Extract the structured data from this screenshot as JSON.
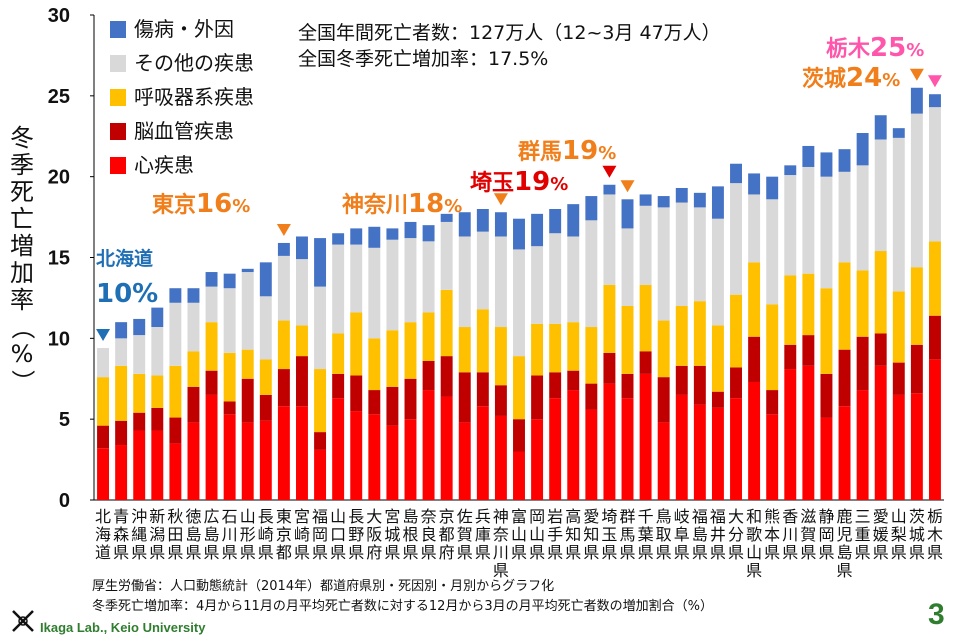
{
  "chart_data": {
    "type": "bar",
    "stacked": true,
    "ylabel": "冬季死亡増加率（%）",
    "ylim": [
      0,
      30
    ],
    "yticks": [
      0,
      5,
      10,
      15,
      20,
      25,
      30
    ],
    "grid": false,
    "legend_position": "top-left",
    "categories": [
      "北海道",
      "青森県",
      "沖縄県",
      "新潟県",
      "秋田県",
      "徳島県",
      "広島県",
      "石川県",
      "山形県",
      "長崎県",
      "東京都",
      "宮崎県",
      "福岡県",
      "山口県",
      "長野県",
      "大阪府",
      "宮城県",
      "島根県",
      "奈良県",
      "京都府",
      "佐賀県",
      "兵庫県",
      "神奈川県",
      "富山県",
      "岡山県",
      "岩手県",
      "高知県",
      "愛知県",
      "埼玉県",
      "群馬県",
      "千葉県",
      "鳥取県",
      "岐阜県",
      "福島県",
      "福井県",
      "大分県",
      "和歌山県",
      "熊本県",
      "香川県",
      "滋賀県",
      "静岡県",
      "鹿児島県",
      "三重県",
      "愛媛県",
      "山梨県",
      "茨城県",
      "栃木県"
    ],
    "category_labels": [
      "北海道",
      "青森県",
      "沖縄県",
      "新潟県",
      "秋田県",
      "徳島県",
      "広島県",
      "石川県",
      "山形県",
      "長崎県",
      "東京都",
      "宮崎県",
      "福岡県",
      "山口県",
      "長野県",
      "大阪府",
      "宮城県",
      "島根県",
      "奈良県",
      "京都府",
      "佐賀県",
      "兵庫県",
      "神奈川県",
      "富山県",
      "岡山県",
      "岩手県",
      "高知県",
      "愛知県",
      "埼玉県",
      "群馬県",
      "千葉県",
      "鳥取県",
      "岐阜県",
      "福島県",
      "福井県",
      "大分県",
      "和歌山県",
      "熊本県",
      "香川県",
      "滋賀県",
      "静岡県",
      "鹿児島県",
      "三重県",
      "愛媛県",
      "山梨県",
      "茨城県",
      "栃木県"
    ],
    "series": [
      {
        "name": "心疾患",
        "color": "#ff0000",
        "values": [
          3.2,
          3.4,
          4.3,
          4.3,
          3.5,
          4.8,
          6.5,
          5.3,
          4.8,
          4.9,
          5.8,
          5.8,
          3.1,
          6.3,
          5.5,
          5.3,
          4.6,
          5.0,
          6.8,
          6.4,
          4.8,
          5.8,
          5.2,
          3.0,
          5.0,
          6.3,
          6.8,
          5.6,
          7.2,
          6.3,
          7.8,
          4.8,
          6.5,
          5.9,
          5.7,
          6.3,
          7.3,
          5.3,
          8.1,
          8.3,
          5.1,
          5.8,
          6.8,
          8.3,
          6.5,
          6.6,
          8.7
        ]
      },
      {
        "name": "脳血管疾患",
        "color": "#c00000",
        "values": [
          1.4,
          1.5,
          1.1,
          1.4,
          1.6,
          2.2,
          1.5,
          0.8,
          2.7,
          1.6,
          2.3,
          3.1,
          1.1,
          1.5,
          2.2,
          1.5,
          2.4,
          2.5,
          1.8,
          2.5,
          3.1,
          2.1,
          1.9,
          2.0,
          2.7,
          1.6,
          1.2,
          1.6,
          1.9,
          1.5,
          1.4,
          2.8,
          1.8,
          2.4,
          1.0,
          1.9,
          2.8,
          1.5,
          1.5,
          1.9,
          2.7,
          3.5,
          3.3,
          2.0,
          2.0,
          3.0,
          2.7
        ]
      },
      {
        "name": "呼吸器系疾患",
        "color": "#ffc000",
        "values": [
          3.0,
          3.4,
          2.4,
          2.0,
          3.2,
          2.2,
          3.0,
          3.0,
          1.8,
          2.2,
          3.0,
          1.9,
          3.9,
          2.5,
          3.9,
          3.2,
          3.5,
          3.5,
          3.0,
          4.1,
          2.8,
          3.9,
          3.6,
          3.9,
          3.2,
          3.0,
          3.0,
          3.5,
          4.2,
          4.2,
          4.1,
          3.5,
          3.7,
          4.0,
          4.1,
          4.5,
          4.6,
          5.3,
          4.3,
          3.8,
          5.3,
          5.4,
          4.1,
          5.1,
          4.4,
          4.8,
          4.6
        ]
      },
      {
        "name": "その他の疾患",
        "color": "#d9d9d9",
        "values": [
          1.8,
          1.7,
          2.4,
          3.0,
          3.9,
          3.0,
          2.2,
          4.0,
          4.8,
          3.9,
          4.0,
          4.1,
          5.1,
          5.5,
          4.2,
          5.6,
          5.6,
          5.2,
          4.4,
          4.2,
          5.6,
          4.8,
          5.6,
          6.6,
          4.8,
          5.6,
          5.3,
          6.6,
          5.6,
          4.8,
          4.9,
          7.0,
          6.4,
          5.8,
          6.6,
          6.9,
          4.2,
          6.5,
          6.2,
          6.6,
          6.9,
          5.6,
          6.5,
          6.9,
          9.5,
          9.5,
          8.3
        ]
      },
      {
        "name": "傷病・外因",
        "color": "#4472c4",
        "values": [
          0.0,
          1.0,
          1.0,
          1.2,
          0.9,
          0.9,
          0.9,
          0.9,
          0.2,
          2.1,
          0.8,
          1.4,
          3.0,
          0.7,
          1.0,
          1.3,
          0.7,
          1.0,
          1.0,
          0.5,
          1.5,
          1.4,
          1.5,
          1.9,
          2.0,
          1.5,
          2.0,
          1.5,
          0.6,
          1.8,
          0.7,
          0.7,
          0.9,
          0.9,
          2.0,
          1.2,
          1.3,
          1.4,
          0.6,
          1.3,
          1.5,
          1.4,
          2.0,
          1.5,
          0.6,
          1.6,
          0.8
        ]
      }
    ],
    "annotations": [
      {
        "label": "北海道",
        "value": "10%",
        "category_index": 0,
        "color": "#1f6fb5"
      },
      {
        "label": "東京",
        "value": "16%",
        "category_index": 10,
        "color": "#f07e1a"
      },
      {
        "label": "神奈川",
        "value": "18%",
        "category_index": 22,
        "color": "#f07e1a"
      },
      {
        "label": "埼玉",
        "value": "19%",
        "category_index": 28,
        "color": "#e00000"
      },
      {
        "label": "群馬",
        "value": "19%",
        "category_index": 29,
        "color": "#f07e1a"
      },
      {
        "label": "茨城",
        "value": "24%",
        "category_index": 45,
        "color": "#f07e1a"
      },
      {
        "label": "栃木",
        "value": "25%",
        "category_index": 46,
        "color": "#ff55aa"
      }
    ],
    "info_lines": [
      "全国年間死亡者数：127万人（12~3月 47万人）",
      "全国冬季死亡増加率：17.5%"
    ]
  },
  "notes": [
    "厚生労働省：人口動態統計（2014年）都道府県別・死因別・月別からグラフ化",
    "冬季死亡増加率：4月から11月の月平均死亡者数に対する12月から3月の月平均死亡者数の増加割合（%）"
  ],
  "footer": {
    "lab": "Ikaga Lab., Keio University",
    "page_number": "3"
  }
}
